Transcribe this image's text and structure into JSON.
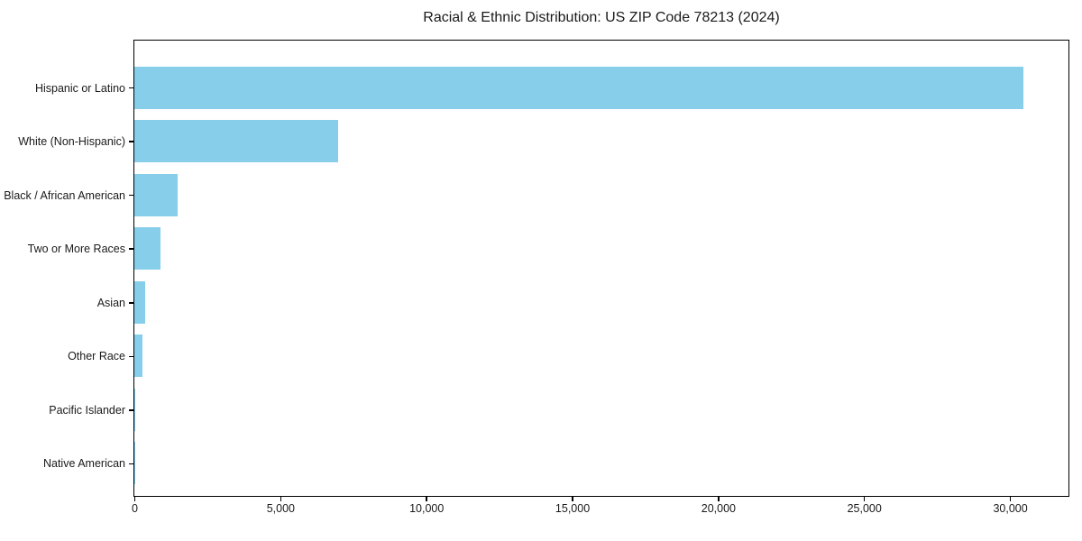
{
  "chart_data": {
    "type": "bar",
    "orientation": "horizontal",
    "title": "Racial & Ethnic Distribution: US ZIP Code 78213 (2024)",
    "xlabel": "",
    "ylabel": "",
    "categories": [
      "Hispanic or Latino",
      "White (Non-Hispanic)",
      "Black / African American",
      "Two or More Races",
      "Asian",
      "Other Race",
      "Pacific Islander",
      "Native American"
    ],
    "values": [
      30460,
      6980,
      1490,
      880,
      380,
      270,
      25,
      10
    ],
    "x_tick_values": [
      0,
      5000,
      10000,
      15000,
      20000,
      25000,
      30000
    ],
    "x_tick_labels": [
      "0",
      "5,000",
      "10,000",
      "15,000",
      "20,000",
      "25,000",
      "30,000"
    ],
    "xlim": [
      0,
      31975
    ],
    "bar_color": "#87CEEB",
    "background_color": "#ffffff",
    "spine_color": "#000000",
    "grid": false,
    "legend": null
  }
}
